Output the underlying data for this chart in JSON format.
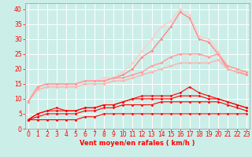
{
  "x": [
    0,
    1,
    2,
    3,
    4,
    5,
    6,
    7,
    8,
    9,
    10,
    11,
    12,
    13,
    14,
    15,
    16,
    17,
    18,
    19,
    20,
    21,
    22,
    23
  ],
  "lines": [
    {
      "y": [
        3,
        3,
        3,
        3,
        3,
        3,
        4,
        4,
        5,
        5,
        5,
        5,
        5,
        5,
        5,
        5,
        5,
        5,
        5,
        5,
        5,
        5,
        5,
        5
      ],
      "color": "#ff0000",
      "lw": 0.8,
      "marker": "D",
      "ms": 1.8,
      "zorder": 5
    },
    {
      "y": [
        3,
        4,
        5,
        5,
        5,
        5,
        6,
        6,
        7,
        7,
        8,
        8,
        8,
        8,
        9,
        9,
        9,
        9,
        9,
        9,
        9,
        8,
        7,
        6
      ],
      "color": "#ff0000",
      "lw": 0.8,
      "marker": "D",
      "ms": 1.8,
      "zorder": 5
    },
    {
      "y": [
        3,
        5,
        6,
        6,
        6,
        6,
        7,
        7,
        8,
        8,
        9,
        10,
        10,
        10,
        10,
        10,
        11,
        11,
        11,
        10,
        10,
        9,
        8,
        7
      ],
      "color": "#ff0000",
      "lw": 0.8,
      "marker": "D",
      "ms": 1.8,
      "zorder": 5
    },
    {
      "y": [
        3,
        5,
        6,
        7,
        6,
        6,
        7,
        7,
        8,
        8,
        9,
        10,
        11,
        11,
        11,
        11,
        12,
        14,
        12,
        11,
        10,
        9,
        8,
        7
      ],
      "color": "#ff0000",
      "lw": 0.8,
      "marker": "D",
      "ms": 1.8,
      "zorder": 5
    },
    {
      "y": [
        9,
        13,
        14,
        14,
        14,
        14,
        15,
        15,
        15,
        16,
        16,
        17,
        18,
        19,
        20,
        21,
        22,
        22,
        22,
        22,
        23,
        20,
        19,
        19
      ],
      "color": "#ffb0b0",
      "lw": 1.0,
      "marker": "D",
      "ms": 1.8,
      "zorder": 4
    },
    {
      "y": [
        9,
        14,
        15,
        15,
        15,
        15,
        16,
        16,
        16,
        17,
        17,
        18,
        19,
        21,
        22,
        24,
        25,
        25,
        25,
        24,
        25,
        21,
        20,
        19
      ],
      "color": "#ff9999",
      "lw": 1.0,
      "marker": "D",
      "ms": 1.8,
      "zorder": 4
    },
    {
      "y": [
        9,
        14,
        15,
        15,
        15,
        15,
        16,
        16,
        16,
        17,
        18,
        20,
        24,
        26,
        30,
        34,
        39,
        37,
        30,
        29,
        25,
        20,
        19,
        18
      ],
      "color": "#ff8888",
      "lw": 1.0,
      "marker": "D",
      "ms": 1.8,
      "zorder": 3
    },
    {
      "y": [
        9,
        14,
        15,
        15,
        15,
        15,
        16,
        16,
        17,
        17,
        19,
        22,
        26,
        30,
        34,
        36,
        40,
        38,
        31,
        30,
        26,
        21,
        20,
        19
      ],
      "color": "#ffcccc",
      "lw": 1.0,
      "marker": "D",
      "ms": 1.8,
      "zorder": 3
    }
  ],
  "xlabel": "Vent moyen/en rafales ( km/h )",
  "ylim": [
    0,
    42
  ],
  "xlim": [
    -0.3,
    23.3
  ],
  "yticks": [
    0,
    5,
    10,
    15,
    20,
    25,
    30,
    35,
    40
  ],
  "xticks": [
    0,
    1,
    2,
    3,
    4,
    5,
    6,
    7,
    8,
    9,
    10,
    11,
    12,
    13,
    14,
    15,
    16,
    17,
    18,
    19,
    20,
    21,
    22,
    23
  ],
  "bg_color": "#cceee8",
  "grid_color": "#ffffff",
  "tick_color": "#ff0000",
  "label_color": "#ff0000",
  "font_size": 5.5,
  "xlabel_fontsize": 6.0
}
